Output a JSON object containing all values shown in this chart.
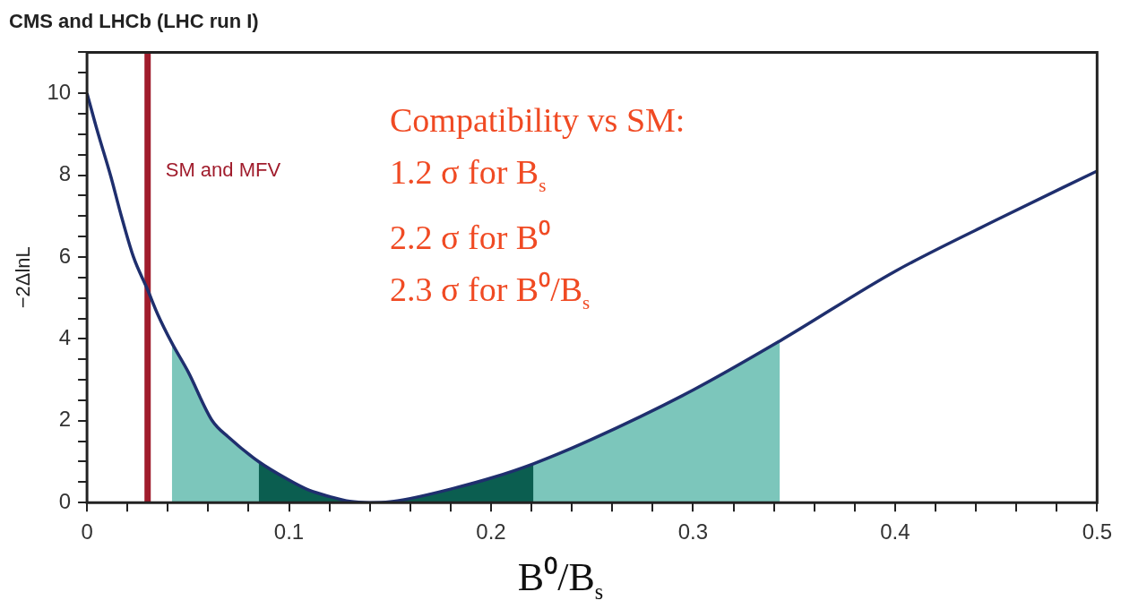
{
  "chart_data": {
    "type": "line",
    "title": "CMS and LHCb (LHC run I)",
    "xlabel": "B⁰/B$_{s}$",
    "ylabel": "−2ΔlnL",
    "series": [
      {
        "type": "area",
        "color": "#7cc6bb",
        "x": [
          0.042,
          0.05,
          0.062,
          0.07,
          0.085,
          0.1,
          0.11,
          0.12,
          0.13,
          0.14,
          0.15,
          0.16,
          0.18,
          0.2,
          0.221,
          0.25,
          0.3,
          0.343
        ],
        "values": [
          3.9,
          3.2,
          2.0,
          1.6,
          1.0,
          0.55,
          0.3,
          0.15,
          0.03,
          0,
          0.02,
          0.1,
          0.33,
          0.6,
          0.95,
          1.55,
          2.75,
          3.95
        ]
      },
      {
        "type": "area",
        "color": "#0b5e50",
        "x": [
          0.085,
          0.1,
          0.11,
          0.12,
          0.13,
          0.14,
          0.15,
          0.16,
          0.18,
          0.2,
          0.221
        ],
        "values": [
          1.0,
          0.55,
          0.3,
          0.15,
          0.03,
          0,
          0.02,
          0.1,
          0.33,
          0.6,
          0.95
        ]
      },
      {
        "color": "#1f2f6e",
        "x": [
          0,
          0.005,
          0.0116,
          0.017,
          0.023,
          0.03,
          0.035,
          0.042,
          0.05,
          0.062,
          0.07,
          0.085,
          0.1,
          0.11,
          0.12,
          0.13,
          0.14,
          0.15,
          0.16,
          0.18,
          0.2,
          0.221,
          0.25,
          0.3,
          0.343,
          0.4,
          0.45,
          0.5
        ],
        "values": [
          10,
          9.1,
          8,
          7,
          6,
          5.2,
          4.6,
          3.9,
          3.2,
          2.0,
          1.6,
          1.0,
          0.55,
          0.3,
          0.15,
          0.03,
          0,
          0.02,
          0.1,
          0.33,
          0.6,
          0.95,
          1.55,
          2.75,
          3.95,
          5.65,
          6.9,
          8.1
        ]
      }
    ],
    "xlim": [
      0,
      0.5
    ],
    "xticks": [
      0,
      {
        "value": 0.02,
        "label": null
      },
      {
        "value": 0.04,
        "label": null
      },
      {
        "value": 0.06,
        "label": null
      },
      {
        "value": 0.08,
        "label": null
      },
      0.1,
      {
        "value": 0.12,
        "label": null
      },
      {
        "value": 0.14,
        "label": null
      },
      {
        "value": 0.16,
        "label": null
      },
      {
        "value": 0.18,
        "label": null
      },
      0.2,
      {
        "value": 0.22,
        "label": null
      },
      {
        "value": 0.24,
        "label": null
      },
      {
        "value": 0.26,
        "label": null
      },
      {
        "value": 0.28,
        "label": null
      },
      0.3,
      {
        "value": 0.32,
        "label": null
      },
      {
        "value": 0.34,
        "label": null
      },
      {
        "value": 0.36,
        "label": null
      },
      {
        "value": 0.38,
        "label": null
      },
      0.4,
      {
        "value": 0.42,
        "label": null
      },
      {
        "value": 0.44,
        "label": null
      },
      {
        "value": 0.46,
        "label": null
      },
      {
        "value": 0.48,
        "label": null
      },
      0.5
    ],
    "ylim": [
      0,
      11
    ],
    "yticks": [
      0,
      {
        "value": 0.5,
        "label": null
      },
      {
        "value": 1,
        "label": null
      },
      {
        "value": 1.5,
        "label": null
      },
      2,
      {
        "value": 2.5,
        "label": null
      },
      {
        "value": 3,
        "label": null
      },
      {
        "value": 3.5,
        "label": null
      },
      4,
      {
        "value": 4.5,
        "label": null
      },
      {
        "value": 5,
        "label": null
      },
      {
        "value": 5.5,
        "label": null
      },
      6,
      {
        "value": 6.5,
        "label": null
      },
      {
        "value": 7,
        "label": null
      },
      {
        "value": 7.5,
        "label": null
      },
      8,
      {
        "value": 8.5,
        "label": null
      },
      {
        "value": 9,
        "label": null
      },
      {
        "value": 9.5,
        "label": null
      },
      10,
      {
        "value": 10.5,
        "label": null
      },
      {
        "value": 11,
        "label": null
      }
    ],
    "ref_lines": [
      {
        "axis": "x",
        "value": 0.03,
        "label": "SM and MFV",
        "color": "#a01c2c"
      }
    ],
    "annotations": [
      "Compatibility vs SM:",
      "1.2 σ for B$_{s}$",
      "2.2 σ for B⁰",
      "2.3 σ for B⁰/B$_{s}$"
    ],
    "grid": false,
    "legend": false,
    "marker": "none"
  }
}
